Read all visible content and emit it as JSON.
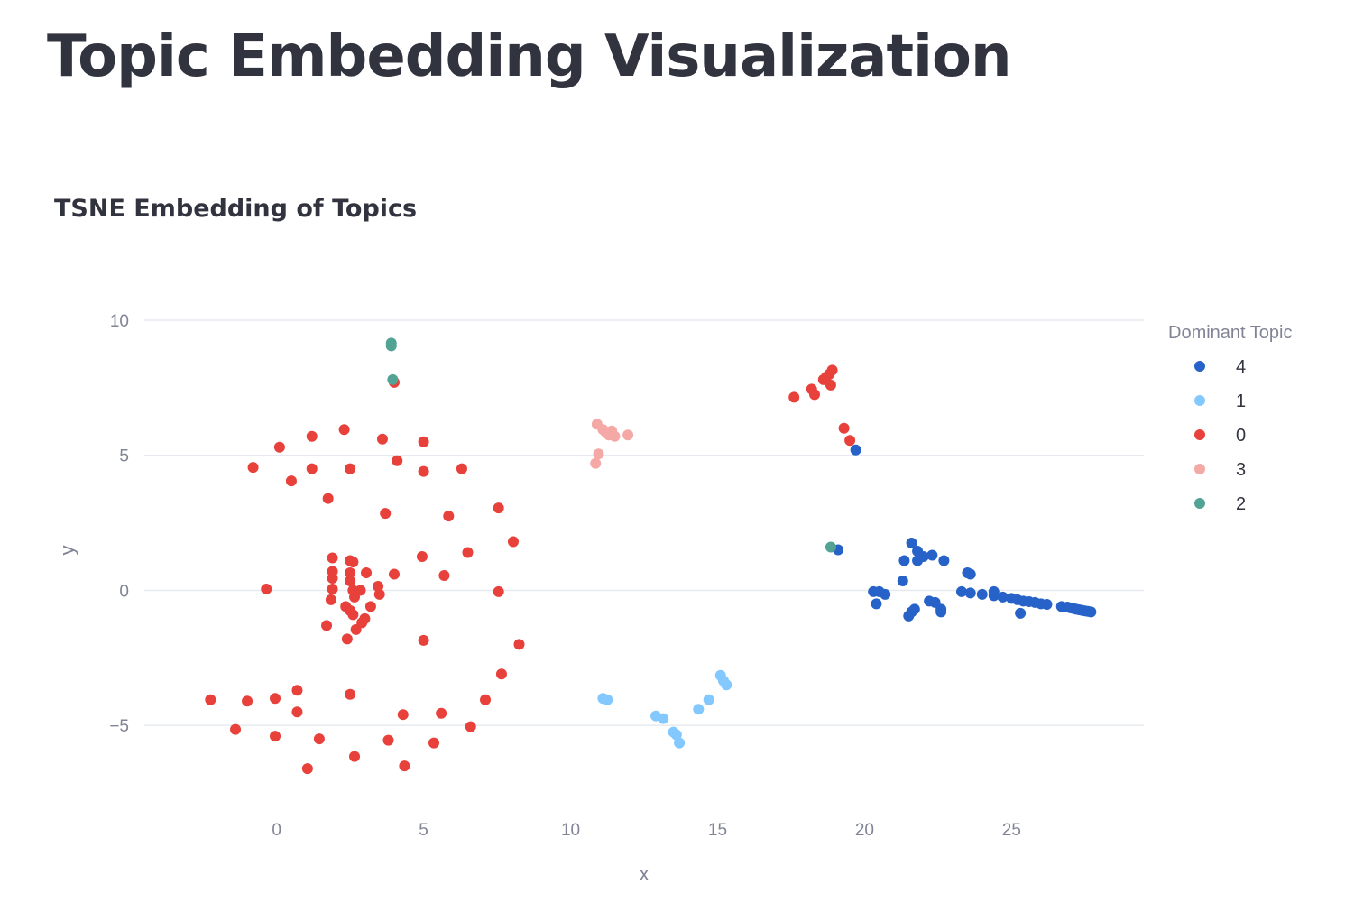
{
  "page": {
    "title": "Topic Embedding Visualization"
  },
  "chart_data": {
    "type": "scatter",
    "title": "TSNE Embedding of Topics",
    "xlabel": "x",
    "ylabel": "y",
    "xlim": [
      -4.5,
      29.5
    ],
    "ylim": [
      -8.2,
      10.5
    ],
    "x_ticks": [
      0,
      5,
      10,
      15,
      20,
      25
    ],
    "y_ticks": [
      10,
      5,
      0,
      -5
    ],
    "y_tick_labels": [
      "10",
      "5",
      "0",
      "−5"
    ],
    "grid": true,
    "legend": {
      "title": "Dominant Topic",
      "position": "right"
    },
    "series": [
      {
        "name": "4",
        "color": "#2762c9",
        "points": [
          [
            19.7,
            5.2
          ],
          [
            19.1,
            1.5
          ],
          [
            21.6,
            1.75
          ],
          [
            21.8,
            1.45
          ],
          [
            21.8,
            1.1
          ],
          [
            21.35,
            1.1
          ],
          [
            22.0,
            1.25
          ],
          [
            22.3,
            1.3
          ],
          [
            22.7,
            1.1
          ],
          [
            21.3,
            0.35
          ],
          [
            23.5,
            0.65
          ],
          [
            23.6,
            0.6
          ],
          [
            20.3,
            -0.05
          ],
          [
            20.5,
            -0.05
          ],
          [
            20.7,
            -0.15
          ],
          [
            20.4,
            -0.5
          ],
          [
            22.2,
            -0.4
          ],
          [
            22.4,
            -0.45
          ],
          [
            21.7,
            -0.7
          ],
          [
            21.6,
            -0.8
          ],
          [
            21.5,
            -0.95
          ],
          [
            22.6,
            -0.7
          ],
          [
            22.6,
            -0.8
          ],
          [
            23.3,
            -0.05
          ],
          [
            23.6,
            -0.1
          ],
          [
            24.0,
            -0.15
          ],
          [
            24.4,
            -0.05
          ],
          [
            24.4,
            -0.2
          ],
          [
            24.7,
            -0.25
          ],
          [
            25.0,
            -0.3
          ],
          [
            25.2,
            -0.35
          ],
          [
            25.4,
            -0.4
          ],
          [
            25.6,
            -0.42
          ],
          [
            25.8,
            -0.45
          ],
          [
            26.0,
            -0.5
          ],
          [
            26.2,
            -0.52
          ],
          [
            25.3,
            -0.85
          ],
          [
            26.7,
            -0.6
          ],
          [
            26.9,
            -0.62
          ],
          [
            27.0,
            -0.65
          ],
          [
            27.1,
            -0.67
          ],
          [
            27.2,
            -0.7
          ],
          [
            27.3,
            -0.72
          ],
          [
            27.4,
            -0.74
          ],
          [
            27.5,
            -0.76
          ],
          [
            27.6,
            -0.78
          ],
          [
            27.7,
            -0.8
          ]
        ]
      },
      {
        "name": "1",
        "color": "#83c9ff",
        "points": [
          [
            11.1,
            -4.0
          ],
          [
            11.25,
            -4.05
          ],
          [
            12.9,
            -4.65
          ],
          [
            13.15,
            -4.75
          ],
          [
            13.5,
            -5.25
          ],
          [
            13.6,
            -5.35
          ],
          [
            13.7,
            -5.65
          ],
          [
            14.35,
            -4.4
          ],
          [
            14.7,
            -4.05
          ],
          [
            15.1,
            -3.15
          ],
          [
            15.2,
            -3.35
          ],
          [
            15.3,
            -3.5
          ]
        ]
      },
      {
        "name": "0",
        "color": "#e8403a",
        "points": [
          [
            4.0,
            7.7
          ],
          [
            17.6,
            7.15
          ],
          [
            18.2,
            7.45
          ],
          [
            18.3,
            7.25
          ],
          [
            18.6,
            7.8
          ],
          [
            18.7,
            7.9
          ],
          [
            18.8,
            8.0
          ],
          [
            18.9,
            8.15
          ],
          [
            18.85,
            7.6
          ],
          [
            19.3,
            6.0
          ],
          [
            19.5,
            5.55
          ],
          [
            2.3,
            5.95
          ],
          [
            1.2,
            5.7
          ],
          [
            3.6,
            5.6
          ],
          [
            0.1,
            5.3
          ],
          [
            5.0,
            5.5
          ],
          [
            -0.8,
            4.55
          ],
          [
            1.2,
            4.5
          ],
          [
            2.5,
            4.5
          ],
          [
            4.1,
            4.8
          ],
          [
            5.0,
            4.4
          ],
          [
            6.3,
            4.5
          ],
          [
            0.5,
            4.05
          ],
          [
            1.75,
            3.4
          ],
          [
            7.55,
            3.05
          ],
          [
            3.7,
            2.85
          ],
          [
            5.85,
            2.75
          ],
          [
            8.05,
            1.8
          ],
          [
            6.5,
            1.4
          ],
          [
            4.95,
            1.25
          ],
          [
            1.9,
            1.2
          ],
          [
            2.5,
            1.1
          ],
          [
            2.6,
            1.05
          ],
          [
            1.9,
            0.7
          ],
          [
            2.5,
            0.65
          ],
          [
            3.05,
            0.65
          ],
          [
            4.0,
            0.6
          ],
          [
            5.7,
            0.55
          ],
          [
            1.9,
            0.45
          ],
          [
            2.5,
            0.35
          ],
          [
            3.45,
            0.15
          ],
          [
            -0.35,
            0.05
          ],
          [
            1.9,
            0.05
          ],
          [
            2.6,
            0.0
          ],
          [
            2.85,
            0.0
          ],
          [
            3.5,
            -0.15
          ],
          [
            7.55,
            -0.05
          ],
          [
            1.85,
            -0.35
          ],
          [
            2.65,
            -0.25
          ],
          [
            2.35,
            -0.6
          ],
          [
            3.2,
            -0.6
          ],
          [
            2.5,
            -0.75
          ],
          [
            2.6,
            -0.9
          ],
          [
            3.0,
            -1.05
          ],
          [
            2.9,
            -1.2
          ],
          [
            1.7,
            -1.3
          ],
          [
            2.7,
            -1.45
          ],
          [
            2.4,
            -1.8
          ],
          [
            5.0,
            -1.85
          ],
          [
            8.25,
            -2.0
          ],
          [
            7.65,
            -3.1
          ],
          [
            2.5,
            -3.85
          ],
          [
            -2.25,
            -4.05
          ],
          [
            -1.0,
            -4.1
          ],
          [
            0.7,
            -3.7
          ],
          [
            -0.05,
            -4.0
          ],
          [
            7.1,
            -4.05
          ],
          [
            0.7,
            -4.5
          ],
          [
            4.3,
            -4.6
          ],
          [
            5.6,
            -4.55
          ],
          [
            -1.4,
            -5.15
          ],
          [
            6.6,
            -5.05
          ],
          [
            1.45,
            -5.5
          ],
          [
            3.8,
            -5.55
          ],
          [
            -0.05,
            -5.4
          ],
          [
            5.35,
            -5.65
          ],
          [
            2.65,
            -6.15
          ],
          [
            1.05,
            -6.6
          ],
          [
            4.35,
            -6.5
          ]
        ]
      },
      {
        "name": "3",
        "color": "#f4a9a7",
        "points": [
          [
            10.9,
            6.15
          ],
          [
            11.1,
            5.95
          ],
          [
            11.2,
            5.85
          ],
          [
            11.4,
            5.9
          ],
          [
            11.3,
            5.75
          ],
          [
            11.5,
            5.7
          ],
          [
            11.95,
            5.75
          ],
          [
            10.95,
            5.05
          ],
          [
            10.85,
            4.7
          ]
        ]
      },
      {
        "name": "2",
        "color": "#52a394",
        "points": [
          [
            3.9,
            9.15
          ],
          [
            3.9,
            9.05
          ],
          [
            3.95,
            7.8
          ],
          [
            18.85,
            1.6
          ]
        ]
      }
    ]
  }
}
